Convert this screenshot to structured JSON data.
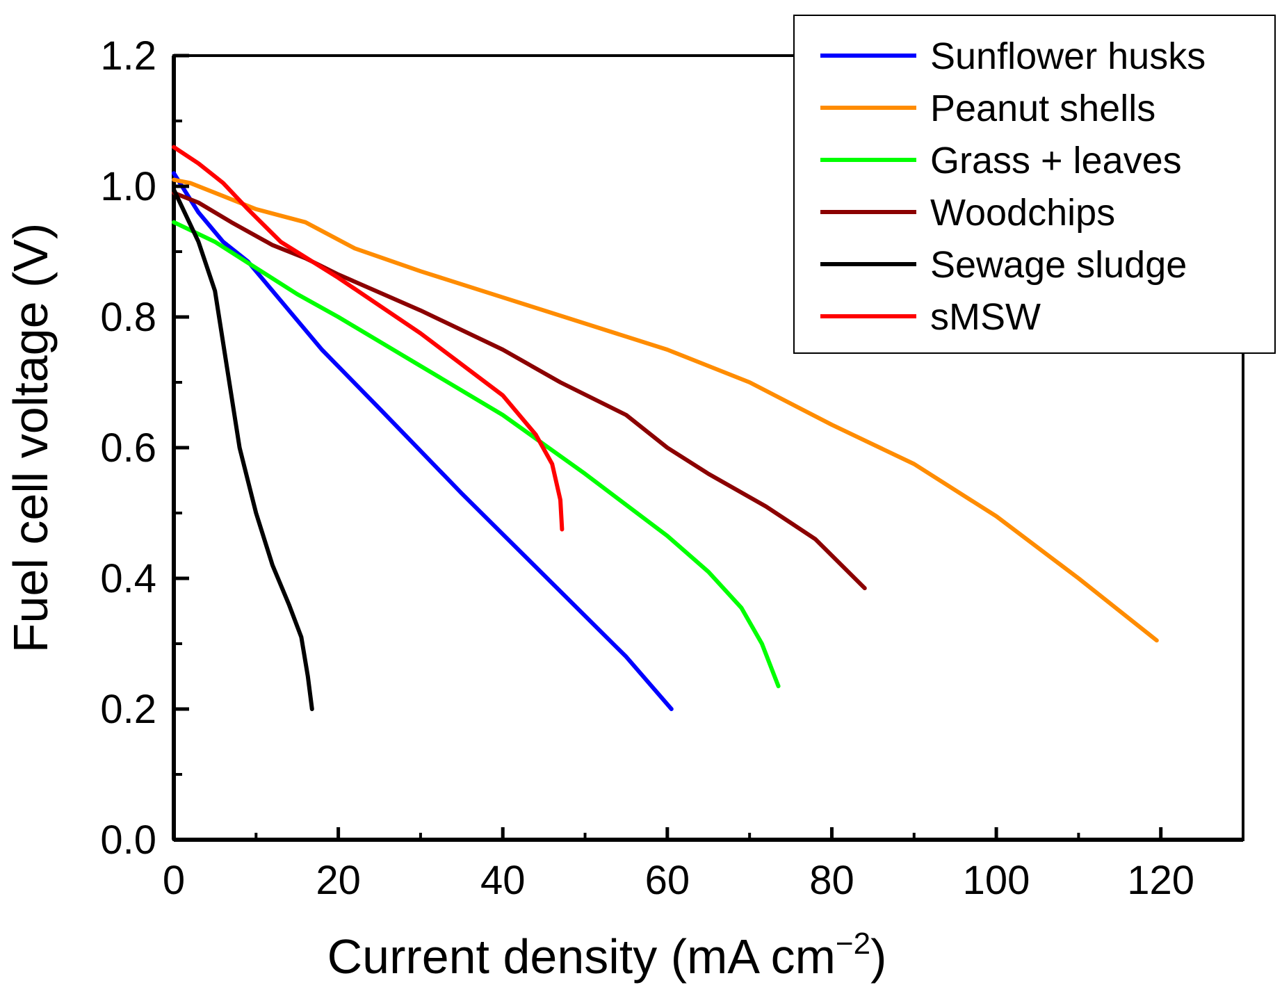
{
  "chart_data": {
    "type": "line",
    "title": "",
    "xlabel": "Current density (mA cm",
    "xlabel_sup": "−2",
    "xlabel_close": ")",
    "ylabel": "Fuel cell voltage (V)",
    "xlim": [
      0,
      130
    ],
    "ylim": [
      0,
      1.2
    ],
    "x_ticks": [
      0,
      20,
      40,
      60,
      80,
      100,
      120
    ],
    "x_tick_labels": [
      "0",
      "20",
      "40",
      "60",
      "80",
      "100",
      "120"
    ],
    "y_ticks": [
      0.0,
      0.2,
      0.4,
      0.6,
      0.8,
      1.0,
      1.2
    ],
    "y_tick_labels": [
      "0.0",
      "0.2",
      "0.4",
      "0.6",
      "0.8",
      "1.0",
      "1.2"
    ],
    "grid": false,
    "legend_position": "top-right",
    "series": [
      {
        "name": "Sunflower husks",
        "color": "#0000ff",
        "points": [
          [
            0,
            1.02
          ],
          [
            3,
            0.96
          ],
          [
            6,
            0.915
          ],
          [
            9,
            0.885
          ],
          [
            13,
            0.825
          ],
          [
            18,
            0.75
          ],
          [
            25,
            0.66
          ],
          [
            35,
            0.53
          ],
          [
            45,
            0.405
          ],
          [
            55,
            0.28
          ],
          [
            60.5,
            0.2
          ]
        ]
      },
      {
        "name": "Peanut shells",
        "color": "#ff8c00",
        "points": [
          [
            0,
            1.01
          ],
          [
            2,
            1.005
          ],
          [
            6,
            0.985
          ],
          [
            10,
            0.965
          ],
          [
            13,
            0.955
          ],
          [
            16,
            0.945
          ],
          [
            22,
            0.905
          ],
          [
            30,
            0.87
          ],
          [
            40,
            0.83
          ],
          [
            50,
            0.79
          ],
          [
            60,
            0.75
          ],
          [
            70,
            0.7
          ],
          [
            80,
            0.635
          ],
          [
            90,
            0.575
          ],
          [
            100,
            0.495
          ],
          [
            110,
            0.4
          ],
          [
            119.5,
            0.305
          ]
        ]
      },
      {
        "name": "Grass + leaves",
        "color": "#00ff00",
        "points": [
          [
            0,
            0.945
          ],
          [
            5,
            0.915
          ],
          [
            10,
            0.875
          ],
          [
            15,
            0.835
          ],
          [
            20,
            0.8
          ],
          [
            30,
            0.725
          ],
          [
            40,
            0.65
          ],
          [
            50,
            0.56
          ],
          [
            60,
            0.465
          ],
          [
            65,
            0.41
          ],
          [
            69,
            0.355
          ],
          [
            71.5,
            0.3
          ],
          [
            73.5,
            0.235
          ]
        ]
      },
      {
        "name": "Woodchips",
        "color": "#8b0000",
        "points": [
          [
            0,
            0.99
          ],
          [
            3,
            0.975
          ],
          [
            7,
            0.945
          ],
          [
            12,
            0.91
          ],
          [
            16,
            0.89
          ],
          [
            20,
            0.865
          ],
          [
            30,
            0.81
          ],
          [
            40,
            0.75
          ],
          [
            47,
            0.7
          ],
          [
            55,
            0.65
          ],
          [
            60,
            0.6
          ],
          [
            65,
            0.56
          ],
          [
            72,
            0.51
          ],
          [
            78,
            0.46
          ],
          [
            84,
            0.385
          ]
        ]
      },
      {
        "name": "Sewage sludge",
        "color": "#000000",
        "points": [
          [
            0,
            0.995
          ],
          [
            3,
            0.915
          ],
          [
            5,
            0.84
          ],
          [
            6.5,
            0.72
          ],
          [
            8,
            0.6
          ],
          [
            10,
            0.5
          ],
          [
            12,
            0.42
          ],
          [
            14,
            0.36
          ],
          [
            15.5,
            0.31
          ],
          [
            16.3,
            0.25
          ],
          [
            16.8,
            0.2
          ]
        ]
      },
      {
        "name": "sMSW",
        "color": "#ff0000",
        "points": [
          [
            0,
            1.06
          ],
          [
            3,
            1.035
          ],
          [
            6,
            1.005
          ],
          [
            9,
            0.965
          ],
          [
            13,
            0.915
          ],
          [
            20,
            0.86
          ],
          [
            30,
            0.775
          ],
          [
            40,
            0.68
          ],
          [
            44,
            0.62
          ],
          [
            46,
            0.575
          ],
          [
            47,
            0.52
          ],
          [
            47.2,
            0.475
          ]
        ]
      }
    ]
  }
}
